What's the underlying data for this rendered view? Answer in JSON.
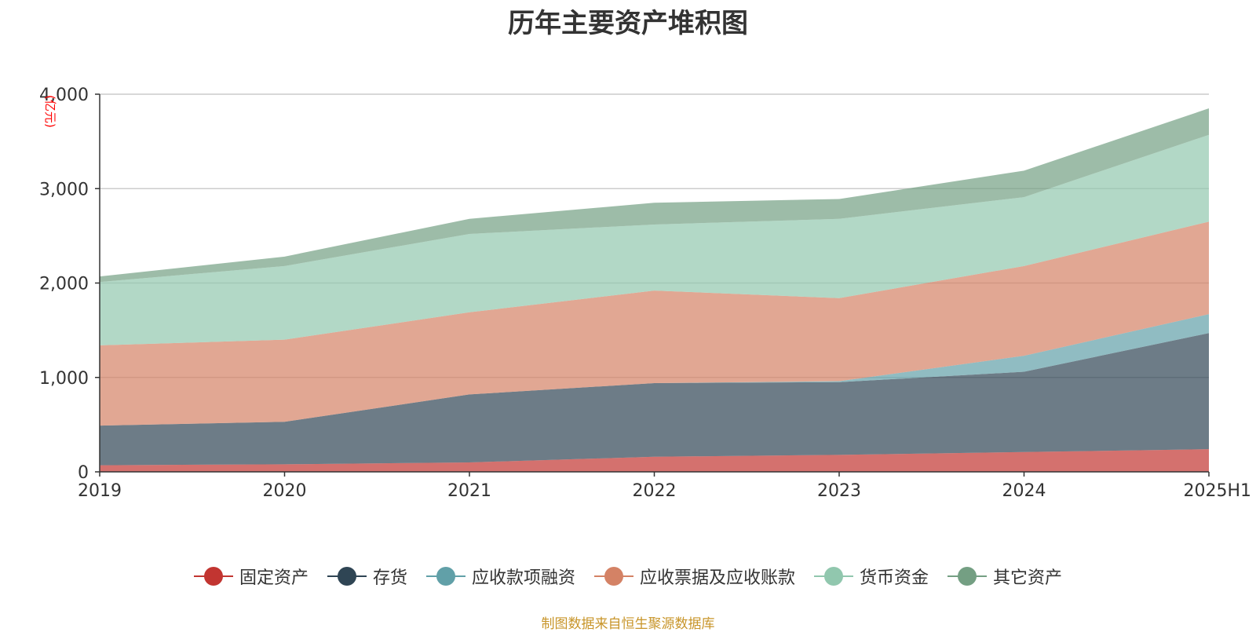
{
  "chart_data": {
    "type": "area",
    "stacked": true,
    "title": "历年主要资产堆积图",
    "unit_label": "(亿元)",
    "categories": [
      "2019",
      "2020",
      "2021",
      "2022",
      "2023",
      "2024",
      "2025H1"
    ],
    "ylim": [
      0,
      4000
    ],
    "yticks": [
      0,
      1000,
      2000,
      3000,
      4000
    ],
    "ytick_labels": [
      "0",
      "1,000",
      "2,000",
      "3,000",
      "4,000"
    ],
    "grid": true,
    "legend_position": "bottom",
    "series": [
      {
        "name": "固定资产",
        "color": "#c23531",
        "values": [
          70,
          80,
          100,
          160,
          180,
          210,
          240
        ]
      },
      {
        "name": "存货",
        "color": "#2f4554",
        "values": [
          420,
          450,
          720,
          780,
          770,
          850,
          1230
        ]
      },
      {
        "name": "应收款项融资",
        "color": "#61a0a8",
        "values": [
          0,
          0,
          0,
          0,
          10,
          170,
          200
        ]
      },
      {
        "name": "应收票据及应收账款",
        "color": "#d48265",
        "values": [
          850,
          870,
          870,
          980,
          880,
          950,
          980
        ]
      },
      {
        "name": "货币资金",
        "color": "#91c7ae",
        "values": [
          670,
          780,
          830,
          700,
          840,
          730,
          920
        ]
      },
      {
        "name": "其它资产",
        "color": "#749f83",
        "values": [
          60,
          100,
          160,
          230,
          210,
          280,
          280
        ]
      }
    ]
  },
  "source_note": "制图数据来自恒生聚源数据库"
}
